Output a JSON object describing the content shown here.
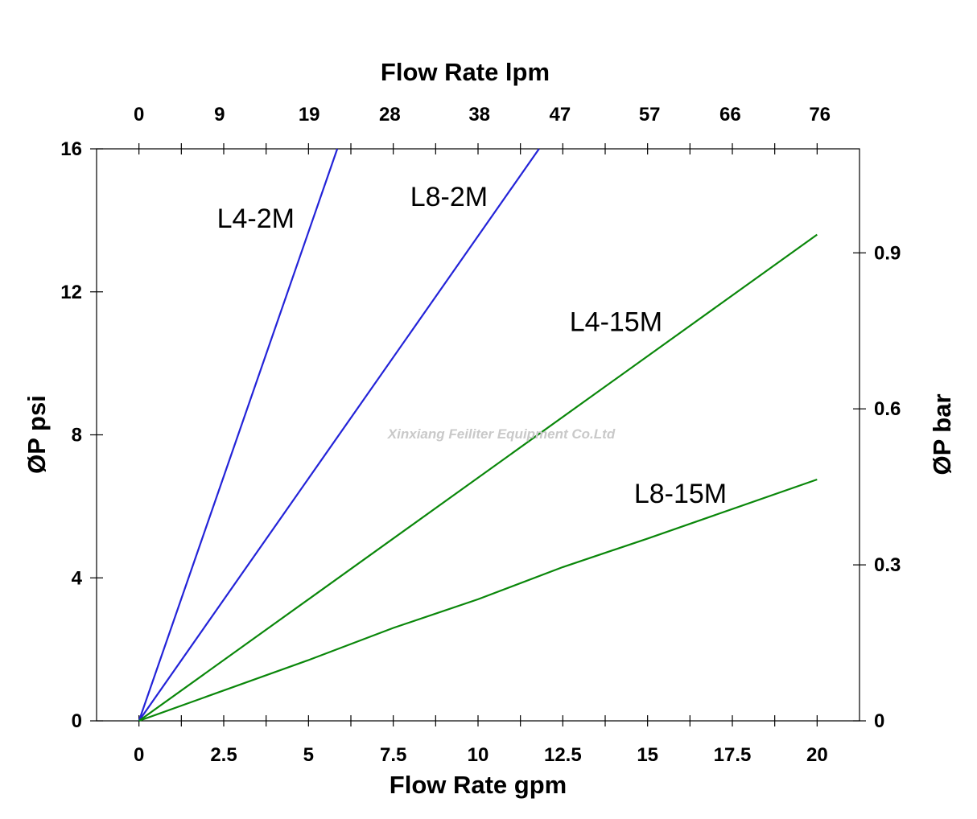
{
  "chart_data": {
    "type": "line",
    "xlabel": "Flow Rate gpm",
    "x2label": "Flow Rate lpm",
    "ylabel": "ØP psi",
    "y2label": "ØP bar",
    "xlim": [
      -1.25,
      21.25
    ],
    "ylim": [
      0,
      16
    ],
    "y2lim": [
      0,
      1.1
    ],
    "x_ticks": [
      0,
      2.5,
      5,
      7.5,
      10,
      12.5,
      15,
      17.5,
      20
    ],
    "x_tick_labels": [
      "0",
      "2.5",
      "5",
      "7.5",
      "10",
      "12.5",
      "15",
      "17.5",
      "20"
    ],
    "x2_ticks": [
      0,
      9,
      19,
      28,
      38,
      47,
      57,
      66,
      76
    ],
    "x2_tick_labels": [
      "0",
      "9",
      "19",
      "28",
      "38",
      "47",
      "57",
      "66",
      "76"
    ],
    "y_ticks": [
      0,
      4,
      8,
      12,
      16
    ],
    "y_tick_labels": [
      "0",
      "4",
      "8",
      "12",
      "16"
    ],
    "y2_ticks": [
      0,
      0.3,
      0.6,
      0.9
    ],
    "y2_tick_labels": [
      "0",
      "0.3",
      "0.6",
      "0.9"
    ],
    "grid": false,
    "series": [
      {
        "name": "L4-2M",
        "color": "#2323d8",
        "x": [
          0,
          5.85
        ],
        "y": [
          0,
          16
        ]
      },
      {
        "name": "L8-2M",
        "color": "#2323d8",
        "x": [
          0,
          11.8
        ],
        "y": [
          0,
          16
        ]
      },
      {
        "name": "L4-15M",
        "color": "#0a870a",
        "x": [
          0,
          20
        ],
        "y": [
          0,
          13.6
        ]
      },
      {
        "name": "L8-15M",
        "color": "#0a870a",
        "x": [
          0,
          5,
          7.5,
          10,
          12.5,
          15,
          20
        ],
        "y": [
          0,
          1.7,
          2.6,
          3.4,
          4.3,
          5.1,
          6.75
        ]
      }
    ],
    "annotations": [
      "Xinxiang Feiliter Equipment Co.Ltd"
    ]
  }
}
